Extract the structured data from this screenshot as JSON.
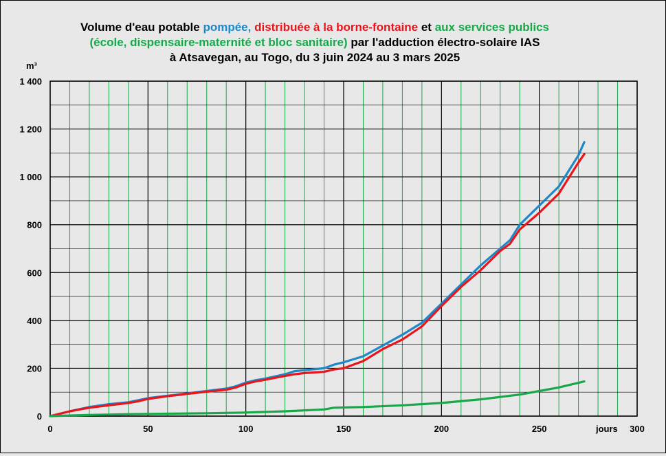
{
  "chart_data": {
    "type": "line",
    "title": {
      "line1": [
        {
          "text": "Volume d'eau potable ",
          "color": "#000000"
        },
        {
          "text": "pompée,",
          "color": "#1f86c7"
        },
        {
          "text": " distribuée à la borne-fontaine",
          "color": "#e8161b"
        },
        {
          "text": " et ",
          "color": "#000000"
        },
        {
          "text": "aux services publics",
          "color": "#18a84a"
        }
      ],
      "line2": [
        {
          "text": "(école, dispensaire-maternité et bloc sanitaire)",
          "color": "#18a84a"
        },
        {
          "text": " par l'adduction électro-solaire IAS",
          "color": "#000000"
        }
      ],
      "line3": [
        {
          "text": "à Atsavegan, au Togo, du 3 juin 2024 au 3 mars 2025",
          "color": "#000000"
        }
      ]
    },
    "ylabel": "m³",
    "xlabel": "jours",
    "xlim": [
      0,
      300
    ],
    "ylim": [
      0,
      1400
    ],
    "x_ticks": [
      0,
      50,
      100,
      150,
      200,
      250,
      300
    ],
    "x_tick_labels": [
      "0",
      "50",
      "100",
      "150",
      "200",
      "250",
      "300"
    ],
    "y_ticks": [
      0,
      200,
      400,
      600,
      800,
      1000,
      1200,
      1400
    ],
    "y_tick_labels": [
      "0",
      "200",
      "400",
      "600",
      "800",
      "1 000",
      "1 200",
      "1 400"
    ],
    "grid": true,
    "colors": {
      "background": "#e8e8e8",
      "major_grid": "#000000",
      "minor_grid_x": "#18a84a",
      "minor_grid_y": "#000000"
    },
    "series": [
      {
        "key": "pompee",
        "color": "#1f86c7",
        "x": [
          0,
          10,
          20,
          30,
          40,
          45,
          50,
          60,
          70,
          80,
          90,
          95,
          100,
          105,
          110,
          120,
          125,
          130,
          140,
          145,
          150,
          160,
          170,
          180,
          190,
          200,
          210,
          220,
          230,
          235,
          240,
          250,
          260,
          270,
          273
        ],
        "y": [
          0,
          20,
          38,
          50,
          58,
          66,
          75,
          85,
          95,
          105,
          115,
          125,
          140,
          150,
          157,
          175,
          188,
          192,
          200,
          215,
          225,
          250,
          295,
          340,
          390,
          470,
          550,
          630,
          700,
          735,
          800,
          880,
          960,
          1090,
          1145
        ]
      },
      {
        "key": "distribuee",
        "color": "#e8161b",
        "x": [
          0,
          10,
          20,
          30,
          40,
          45,
          50,
          60,
          70,
          80,
          90,
          95,
          100,
          105,
          110,
          120,
          125,
          130,
          140,
          145,
          150,
          160,
          170,
          180,
          190,
          200,
          210,
          220,
          230,
          235,
          240,
          250,
          260,
          270,
          273
        ],
        "y": [
          0,
          20,
          35,
          45,
          55,
          62,
          72,
          83,
          93,
          102,
          110,
          120,
          135,
          145,
          152,
          168,
          175,
          180,
          185,
          195,
          200,
          230,
          280,
          320,
          375,
          460,
          540,
          610,
          690,
          720,
          780,
          850,
          930,
          1060,
          1095
        ]
      },
      {
        "key": "services",
        "color": "#18a84a",
        "x": [
          0,
          20,
          40,
          60,
          80,
          100,
          120,
          140,
          145,
          160,
          180,
          200,
          220,
          240,
          250,
          260,
          273
        ],
        "y": [
          0,
          5,
          8,
          10,
          12,
          15,
          20,
          28,
          35,
          38,
          45,
          55,
          70,
          90,
          105,
          120,
          145
        ]
      }
    ]
  }
}
